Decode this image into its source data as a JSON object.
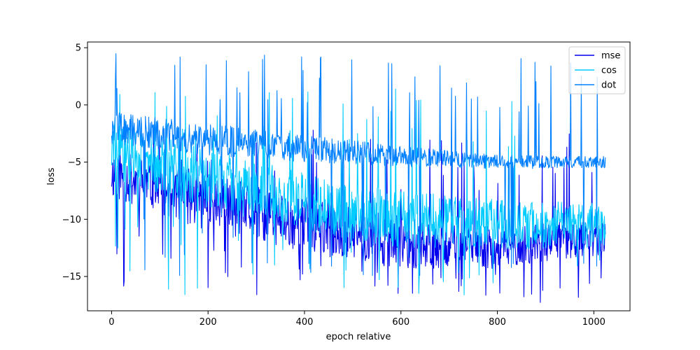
{
  "chart_data": {
    "type": "line",
    "title": "",
    "xlabel": "epoch relative",
    "ylabel": "loss",
    "xlim": [
      -50,
      1075
    ],
    "ylim": [
      -18,
      5.5
    ],
    "xticks": [
      0,
      200,
      400,
      600,
      800,
      1000
    ],
    "yticks": [
      5,
      0,
      -5,
      -10,
      -15
    ],
    "ytick_labels": [
      "5",
      "0",
      "−5",
      "−10",
      "−15"
    ],
    "grid": false,
    "legend_position": "top-right",
    "n_points": 1025,
    "series": [
      {
        "name": "mse",
        "color": "#0000ee",
        "approx_trend": [
          [
            0,
            -6.0
          ],
          [
            200,
            -8.5
          ],
          [
            400,
            -10.5
          ],
          [
            600,
            -12.0
          ],
          [
            800,
            -12.5
          ],
          [
            1024,
            -11.5
          ]
        ],
        "approx_spread": [
          [
            0,
            2.2
          ],
          [
            200,
            2.5
          ],
          [
            400,
            2.5
          ],
          [
            600,
            2.3
          ],
          [
            800,
            1.8
          ],
          [
            1024,
            1.6
          ]
        ],
        "min": -17.3,
        "max": -2.0
      },
      {
        "name": "cos",
        "color": "#00ccff",
        "approx_trend": [
          [
            0,
            -4.0
          ],
          [
            200,
            -6.5
          ],
          [
            400,
            -8.5
          ],
          [
            600,
            -10.0
          ],
          [
            800,
            -10.5
          ],
          [
            1024,
            -10.5
          ]
        ],
        "approx_spread": [
          [
            0,
            2.5
          ],
          [
            200,
            2.6
          ],
          [
            400,
            2.6
          ],
          [
            600,
            2.5
          ],
          [
            800,
            2.2
          ],
          [
            1024,
            2.0
          ]
        ],
        "min": -16.8,
        "max": 1.5
      },
      {
        "name": "dot",
        "color": "#0080ff",
        "approx_trend": [
          [
            0,
            -2.0
          ],
          [
            200,
            -3.0
          ],
          [
            400,
            -3.8
          ],
          [
            600,
            -4.5
          ],
          [
            800,
            -5.0
          ],
          [
            1024,
            -5.0
          ]
        ],
        "approx_spread": [
          [
            0,
            1.4
          ],
          [
            200,
            1.4
          ],
          [
            400,
            1.2
          ],
          [
            600,
            0.9
          ],
          [
            800,
            0.6
          ],
          [
            1024,
            0.5
          ]
        ],
        "min": -15.0,
        "max": 4.5
      }
    ]
  }
}
